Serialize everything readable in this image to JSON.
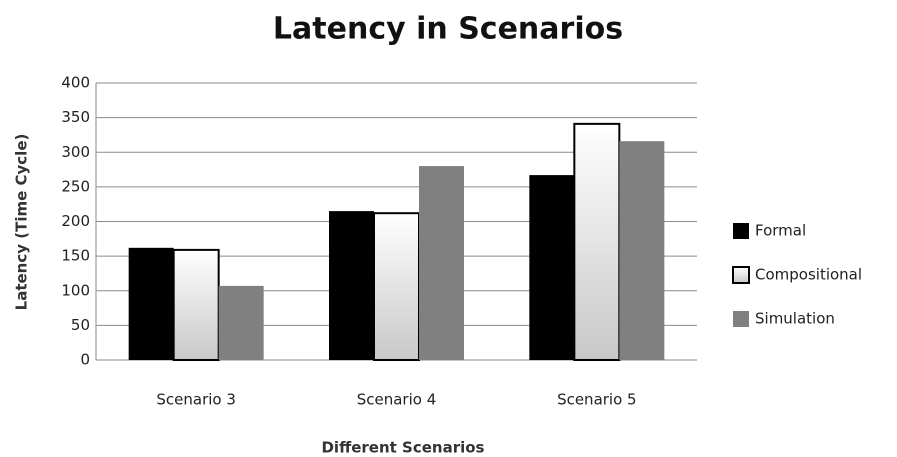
{
  "chart_data": {
    "type": "bar",
    "title": "Latency in Scenarios",
    "x_label": "Different Scenarios",
    "y_label": "Latency (Time Cycle)",
    "categories": [
      "Scenario 3",
      "Scenario 4",
      "Scenario 5"
    ],
    "series": [
      {
        "name": "Formal",
        "color": "#000000",
        "values": [
          162,
          215,
          267
        ]
      },
      {
        "name": "Compositional",
        "color": "#c8c8c8",
        "values": [
          159,
          212,
          341
        ]
      },
      {
        "name": "Simulation",
        "color": "#808080",
        "values": [
          107,
          280,
          316
        ]
      }
    ],
    "ylim": [
      0,
      400
    ],
    "yticks": [
      0,
      50,
      100,
      150,
      200,
      250,
      300,
      350,
      400
    ],
    "grid": true,
    "legend": "right"
  }
}
